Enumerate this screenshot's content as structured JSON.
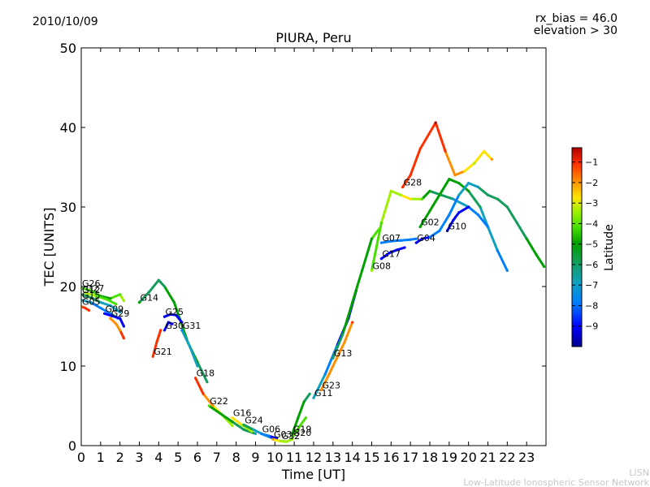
{
  "header": {
    "date": "2010/10/09",
    "rx_bias": "rx_bias = 46.0",
    "elevation": "elevation > 30"
  },
  "footer": {
    "line1": "LISN",
    "line2": "Low-Latitude Ionospheric Sensor Network"
  },
  "colors": {
    "colormap": [
      "#00008f",
      "#0000ff",
      "#007fff",
      "#10a0c0",
      "#139d5c",
      "#00a000",
      "#48e000",
      "#a0f000",
      "#ffe400",
      "#ff9000",
      "#ff3000",
      "#b40000"
    ]
  },
  "chart_data": {
    "type": "scatter",
    "title": "PIURA, Peru",
    "xlabel": "Time [UT]",
    "ylabel": "TEC [UNITS]",
    "xlim": [
      0,
      24
    ],
    "ylim": [
      0,
      50
    ],
    "xticks": [
      0,
      1,
      2,
      3,
      4,
      5,
      6,
      7,
      8,
      9,
      10,
      11,
      12,
      13,
      14,
      15,
      16,
      17,
      18,
      19,
      20,
      21,
      22,
      23
    ],
    "yticks": [
      0,
      10,
      20,
      30,
      40,
      50
    ],
    "colorbar": {
      "label": "Latitude",
      "range": [
        -10,
        -0.3
      ],
      "ticks": [
        -1,
        -2,
        -3,
        -4,
        -5,
        -6,
        -7,
        -8,
        -9
      ]
    },
    "series": [
      {
        "name": "G26",
        "points": [
          [
            0.0,
            19.8,
            -4.5
          ],
          [
            0.5,
            19.5,
            -4.8
          ],
          [
            1.0,
            18.8,
            -5.3
          ],
          [
            1.5,
            18.5,
            -5.6
          ],
          [
            2.0,
            19.0,
            -4.5
          ],
          [
            2.2,
            18.2,
            -3.8
          ]
        ]
      },
      {
        "name": "G12",
        "points": [
          [
            0.0,
            19.0,
            -6.3
          ],
          [
            0.5,
            18.6,
            -6.6
          ],
          [
            1.0,
            18.0,
            -7.0
          ],
          [
            1.5,
            17.6,
            -7.3
          ],
          [
            2.0,
            16.8,
            -7.6
          ]
        ]
      },
      {
        "name": "G15",
        "points": [
          [
            0.0,
            18.3,
            -7.5
          ],
          [
            0.5,
            18.0,
            -7.7
          ],
          [
            1.0,
            17.3,
            -8.0
          ],
          [
            1.5,
            16.6,
            -8.3
          ],
          [
            1.9,
            16.0,
            -8.6
          ]
        ]
      },
      {
        "name": "G27",
        "points": [
          [
            0.2,
            19.2,
            -4.0
          ],
          [
            0.8,
            18.8,
            -4.3
          ],
          [
            1.3,
            18.4,
            -4.6
          ],
          [
            1.8,
            17.8,
            -5.0
          ]
        ]
      },
      {
        "name": "G05",
        "points": [
          [
            0.0,
            17.5,
            -1.8
          ],
          [
            0.2,
            17.3,
            -1.4
          ],
          [
            0.4,
            17.0,
            -1.0
          ]
        ]
      },
      {
        "name": "G09",
        "points": [
          [
            1.2,
            16.6,
            -9.5
          ],
          [
            1.6,
            16.3,
            -9.3
          ],
          [
            2.0,
            16.0,
            -9.1
          ],
          [
            2.2,
            15.0,
            -9.0
          ]
        ]
      },
      {
        "name": "G29",
        "points": [
          [
            1.5,
            16.0,
            -2.5
          ],
          [
            1.8,
            15.3,
            -2.2
          ],
          [
            2.0,
            14.5,
            -1.8
          ],
          [
            2.2,
            13.5,
            -1.4
          ]
        ]
      },
      {
        "name": "G14",
        "points": [
          [
            3.0,
            18.0,
            -6.0
          ],
          [
            3.5,
            19.3,
            -6.2
          ],
          [
            4.0,
            20.8,
            -6.5
          ],
          [
            4.3,
            20.0,
            -6.3
          ],
          [
            4.8,
            18.0,
            -5.5
          ],
          [
            5.5,
            13.0,
            -5.0
          ],
          [
            6.0,
            10.5,
            -6.0
          ],
          [
            6.5,
            8.0,
            -6.5
          ]
        ]
      },
      {
        "name": "G21",
        "points": [
          [
            3.7,
            11.2,
            -1.0
          ],
          [
            3.9,
            13.0,
            -1.3
          ],
          [
            4.1,
            14.5,
            -1.6
          ]
        ]
      },
      {
        "name": "G25",
        "points": [
          [
            4.3,
            16.2,
            -9.5
          ],
          [
            4.6,
            16.5,
            -9.6
          ],
          [
            4.9,
            16.4,
            -9.4
          ],
          [
            5.2,
            15.5,
            -9.2
          ]
        ]
      },
      {
        "name": "G30",
        "points": [
          [
            4.3,
            14.5,
            -9.2
          ],
          [
            4.5,
            15.5,
            -9.0
          ],
          [
            4.7,
            15.3,
            -9.2
          ]
        ]
      },
      {
        "name": "G31",
        "points": [
          [
            5.2,
            14.5,
            -7.8
          ],
          [
            5.6,
            12.5,
            -7.5
          ],
          [
            6.0,
            10.0,
            -7.2
          ]
        ]
      },
      {
        "name": "G18",
        "points": [
          [
            5.9,
            8.5,
            -1.0
          ],
          [
            6.3,
            6.5,
            -1.5
          ],
          [
            6.8,
            5.0,
            -2.5
          ],
          [
            7.3,
            3.8,
            -3.5
          ],
          [
            7.8,
            2.5,
            -4.2
          ]
        ]
      },
      {
        "name": "G22",
        "points": [
          [
            6.6,
            5.0,
            -5.0
          ],
          [
            7.2,
            4.0,
            -5.5
          ],
          [
            7.8,
            3.0,
            -6.0
          ],
          [
            8.4,
            2.0,
            -6.5
          ],
          [
            9.0,
            1.5,
            -7.0
          ]
        ]
      },
      {
        "name": "G16",
        "points": [
          [
            7.8,
            3.5,
            -3.0
          ],
          [
            8.3,
            2.6,
            -3.5
          ],
          [
            8.8,
            1.8,
            -4.0
          ]
        ]
      },
      {
        "name": "G24",
        "points": [
          [
            8.4,
            2.6,
            -6.5
          ],
          [
            8.9,
            2.0,
            -7.0
          ],
          [
            9.4,
            1.4,
            -7.5
          ],
          [
            9.9,
            0.9,
            -8.0
          ]
        ]
      },
      {
        "name": "G06",
        "points": [
          [
            9.3,
            1.5,
            -8.3
          ],
          [
            9.7,
            1.2,
            -8.6
          ],
          [
            10.1,
            0.9,
            -8.9
          ]
        ]
      },
      {
        "name": "G03",
        "points": [
          [
            9.9,
            0.8,
            -2.5
          ],
          [
            10.2,
            0.6,
            -3.0
          ],
          [
            10.5,
            0.5,
            -3.5
          ]
        ]
      },
      {
        "name": "G32",
        "points": [
          [
            10.3,
            0.6,
            -4.0
          ],
          [
            10.6,
            0.5,
            -3.8
          ],
          [
            10.9,
            0.8,
            -3.5
          ]
        ]
      },
      {
        "name": "G19",
        "points": [
          [
            10.9,
            1.5,
            -5.5
          ],
          [
            11.2,
            3.5,
            -5.8
          ],
          [
            11.5,
            5.5,
            -6.0
          ],
          [
            11.8,
            6.5,
            -6.2
          ]
        ]
      },
      {
        "name": "G20",
        "points": [
          [
            10.9,
            1.0,
            -4.5
          ],
          [
            11.3,
            2.5,
            -4.8
          ],
          [
            11.6,
            3.5,
            -5.0
          ]
        ]
      },
      {
        "name": "G23",
        "points": [
          [
            12.4,
            7.0,
            -2.5
          ],
          [
            12.8,
            9.0,
            -2.2
          ],
          [
            13.2,
            11.0,
            -2.0
          ],
          [
            13.6,
            13.0,
            -1.8
          ],
          [
            14.0,
            15.5,
            -1.5
          ]
        ]
      },
      {
        "name": "G11",
        "points": [
          [
            12.0,
            6.0,
            -7.5
          ],
          [
            12.6,
            9.0,
            -8.0
          ],
          [
            13.2,
            12.5,
            -8.5
          ],
          [
            13.8,
            16.0,
            -9.0
          ],
          [
            14.2,
            19.5,
            -9.3
          ]
        ]
      },
      {
        "name": "G13",
        "points": [
          [
            13.0,
            11.0,
            -6.5
          ],
          [
            13.5,
            14.0,
            -6.2
          ],
          [
            14.0,
            18.0,
            -5.8
          ],
          [
            14.5,
            22.0,
            -5.5
          ],
          [
            15.0,
            26.0,
            -5.2
          ],
          [
            15.4,
            27.3,
            -4.0
          ]
        ]
      },
      {
        "name": "G07",
        "points": [
          [
            15.5,
            25.5,
            -7.8
          ],
          [
            16.0,
            25.7,
            -7.9
          ],
          [
            16.5,
            25.8,
            -8.0
          ],
          [
            17.0,
            25.9,
            -8.1
          ],
          [
            17.3,
            26.0,
            -8.2
          ]
        ]
      },
      {
        "name": "G17",
        "points": [
          [
            15.5,
            23.5,
            -9.3
          ],
          [
            15.9,
            24.2,
            -9.2
          ],
          [
            16.3,
            24.6,
            -9.1
          ],
          [
            16.7,
            24.9,
            -9.0
          ]
        ]
      },
      {
        "name": "G08",
        "points": [
          [
            15.0,
            22.0,
            -4.2
          ],
          [
            15.5,
            28.0,
            -4.5
          ],
          [
            16.0,
            32.0,
            -4.0
          ],
          [
            16.5,
            31.5,
            -3.5
          ],
          [
            17.0,
            31.0,
            -3.2
          ],
          [
            17.6,
            31.0,
            -5.0
          ],
          [
            18.0,
            32.0,
            -6.0
          ],
          [
            18.6,
            31.5,
            -6.5
          ],
          [
            19.2,
            31.0,
            -7.0
          ],
          [
            20.0,
            30.0,
            -7.5
          ]
        ]
      },
      {
        "name": "G28",
        "points": [
          [
            16.6,
            32.5,
            -1.2
          ],
          [
            17.0,
            34.0,
            -1.0
          ],
          [
            17.5,
            37.3,
            -0.8
          ],
          [
            18.3,
            40.6,
            -0.7
          ],
          [
            18.8,
            37.0,
            -1.3
          ],
          [
            19.3,
            34.0,
            -2.0
          ],
          [
            19.8,
            34.5,
            -3.0
          ],
          [
            20.3,
            35.5,
            -3.5
          ],
          [
            20.8,
            37.0,
            -3.2
          ],
          [
            21.2,
            36.0,
            -2.5
          ]
        ]
      },
      {
        "name": "G02",
        "points": [
          [
            17.5,
            27.5,
            -6.0
          ],
          [
            18.0,
            29.5,
            -5.8
          ],
          [
            18.5,
            31.5,
            -5.5
          ],
          [
            19.0,
            33.5,
            -5.2
          ],
          [
            19.5,
            33.0,
            -5.5
          ],
          [
            20.0,
            32.0,
            -6.0
          ],
          [
            20.6,
            30.0,
            -6.8
          ],
          [
            21.0,
            27.5,
            -7.5
          ],
          [
            21.5,
            24.5,
            -8.0
          ],
          [
            22.0,
            22.0,
            -8.5
          ]
        ]
      },
      {
        "name": "G10",
        "points": [
          [
            18.9,
            27.0,
            -9.6
          ],
          [
            19.2,
            28.3,
            -9.4
          ],
          [
            19.5,
            29.3,
            -9.2
          ],
          [
            20.0,
            30.0,
            -8.8
          ],
          [
            20.5,
            29.0,
            -8.5
          ],
          [
            21.0,
            27.5,
            -8.2
          ]
        ]
      },
      {
        "name": "G04",
        "points": [
          [
            17.3,
            25.5,
            -9.0
          ],
          [
            17.6,
            26.0,
            -8.8
          ],
          [
            18.0,
            26.2,
            -8.6
          ],
          [
            18.5,
            27.0,
            -8.4
          ],
          [
            19.0,
            29.0,
            -8.0
          ],
          [
            19.5,
            31.5,
            -7.6
          ],
          [
            20.0,
            33.0,
            -7.2
          ],
          [
            20.5,
            32.5,
            -7.0
          ],
          [
            21.0,
            31.5,
            -6.8
          ],
          [
            21.5,
            31.0,
            -6.6
          ],
          [
            22.0,
            30.0,
            -6.4
          ],
          [
            22.5,
            28.0,
            -6.2
          ],
          [
            23.0,
            26.0,
            -6.0
          ],
          [
            23.5,
            24.0,
            -5.8
          ],
          [
            23.9,
            22.5,
            -5.6
          ]
        ]
      }
    ]
  }
}
